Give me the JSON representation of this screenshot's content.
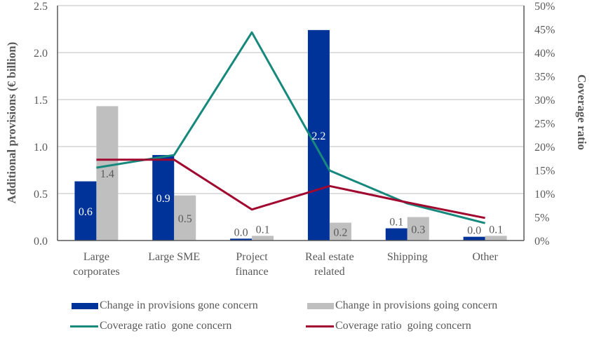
{
  "chart_data": {
    "type": "bar",
    "title": "",
    "categories": [
      [
        "Large",
        "corporates"
      ],
      [
        "Large SME"
      ],
      [
        "Project",
        "finance"
      ],
      [
        "Real estate",
        "related"
      ],
      [
        "Shipping"
      ],
      [
        "Other"
      ]
    ],
    "ylabel": "Additional provisions (€ billion)",
    "y2label": "Coverage ratio",
    "ylim": [
      0,
      2.5
    ],
    "yticks": [
      "0.0",
      "0.5",
      "1.0",
      "1.5",
      "2.0",
      "2.5"
    ],
    "y2lim": [
      0,
      50
    ],
    "y2ticks": [
      "0%",
      "5%",
      "10%",
      "15%",
      "20%",
      "25%",
      "30%",
      "35%",
      "40%",
      "45%",
      "50%"
    ],
    "grid": true,
    "legend_position": "bottom",
    "series": [
      {
        "name": "Change in provisions gone concern",
        "kind": "bar",
        "axis": "left",
        "color": "#003399",
        "values": [
          0.63,
          0.91,
          0.02,
          2.24,
          0.13,
          0.04
        ],
        "labels": [
          "0.6",
          "0.9",
          "0.0",
          "2.2",
          "0.1",
          "0.0"
        ]
      },
      {
        "name": "Change in provisions going concern",
        "kind": "bar",
        "axis": "left",
        "color": "#bfbfbf",
        "values": [
          1.43,
          0.48,
          0.05,
          0.19,
          0.25,
          0.05
        ],
        "labels": [
          "1.4",
          "0.5",
          "0.1",
          "0.2",
          "0.3",
          "0.1"
        ]
      },
      {
        "name": "Coverage ratio  gone concern",
        "kind": "line",
        "axis": "right",
        "color": "#16887c",
        "values": [
          15.5,
          18.2,
          44.3,
          14.9,
          7.9,
          3.7
        ]
      },
      {
        "name": "Coverage ratio  going concern",
        "kind": "line",
        "axis": "right",
        "color": "#a0082f",
        "values": [
          17.2,
          17.2,
          6.6,
          11.6,
          8.1,
          4.8
        ]
      }
    ]
  }
}
